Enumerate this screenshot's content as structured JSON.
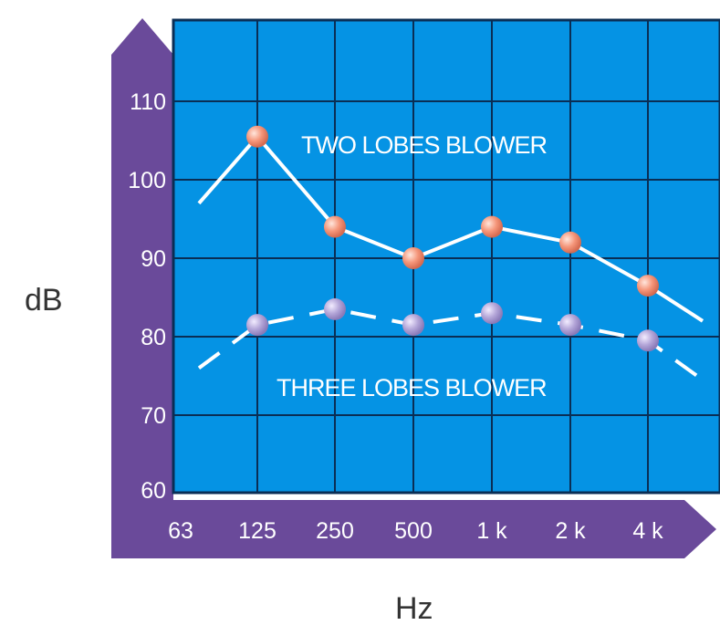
{
  "chart_data": {
    "type": "line",
    "x_ticks": [
      "63",
      "125",
      "250",
      "500",
      "1 k",
      "2 k",
      "4 k"
    ],
    "y_ticks": [
      60,
      70,
      80,
      90,
      100,
      110
    ],
    "ylim": [
      60,
      110
    ],
    "xlabel": "Hz",
    "ylabel": "dB",
    "grid": true,
    "series": [
      {
        "name": "TWO  LOBES BLOWER",
        "style": "solid",
        "marker_color": "#f5967a",
        "points": [
          {
            "x": "63-125",
            "y": 97,
            "marker": false
          },
          {
            "x": "125",
            "y": 105.5,
            "marker": true
          },
          {
            "x": "250",
            "y": 94,
            "marker": true
          },
          {
            "x": "500",
            "y": 90,
            "marker": true
          },
          {
            "x": "1 k",
            "y": 94,
            "marker": true
          },
          {
            "x": "2 k",
            "y": 92,
            "marker": true
          },
          {
            "x": "4 k",
            "y": 86.5,
            "marker": true
          },
          {
            "x": "4 k+",
            "y": 82,
            "marker": false
          }
        ]
      },
      {
        "name": "THREE  LOBES BLOWER",
        "style": "dashed",
        "marker_color": "#b4a6d8",
        "points": [
          {
            "x": "63-125",
            "y": 76,
            "marker": false
          },
          {
            "x": "125",
            "y": 81.5,
            "marker": true
          },
          {
            "x": "250",
            "y": 83.5,
            "marker": true
          },
          {
            "x": "500",
            "y": 81.5,
            "marker": true
          },
          {
            "x": "1 k",
            "y": 83,
            "marker": true
          },
          {
            "x": "2 k",
            "y": 81.5,
            "marker": true
          },
          {
            "x": "4 k",
            "y": 79.5,
            "marker": true
          },
          {
            "x": "4 k+",
            "y": 74.5,
            "marker": false
          }
        ]
      }
    ],
    "colors": {
      "plot_background": "#0593e4",
      "grid": "#0a2e55",
      "axis_band": "#6a4a9a",
      "line": "#ffffff"
    }
  }
}
